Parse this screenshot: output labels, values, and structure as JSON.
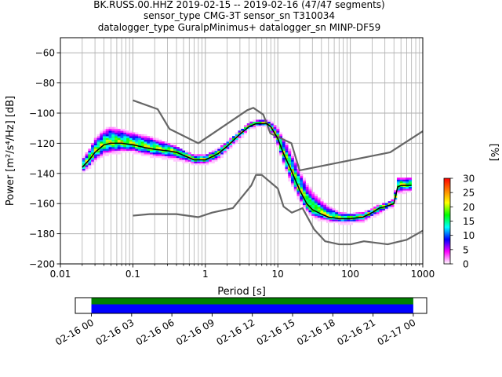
{
  "title_lines": [
    "BK.RUSS.00.HHZ   2019-02-15 -- 2019-02-16  (47/47 segments)",
    "sensor_type CMG-3T sensor_sn T310034",
    "datalogger_type GuralpMinimus+ datalogger_sn MINP-DF59"
  ],
  "chart_data": {
    "type": "heatmap",
    "xlabel": "Period [s]",
    "ylabel": "Power [m²/s⁴/Hz] [dB]",
    "xscale": "log",
    "xlim": [
      0.01,
      1000
    ],
    "ylim": [
      -200,
      -50
    ],
    "x_ticks": [
      {
        "value": 0.01,
        "label": "0.01"
      },
      {
        "value": 0.1,
        "label": "0.1"
      },
      {
        "value": 1,
        "label": "1"
      },
      {
        "value": 10,
        "label": "10"
      },
      {
        "value": 100,
        "label": "100"
      },
      {
        "value": 1000,
        "label": "1000"
      }
    ],
    "y_ticks": [
      {
        "value": -200,
        "label": "−200"
      },
      {
        "value": -180,
        "label": "−180"
      },
      {
        "value": -160,
        "label": "−160"
      },
      {
        "value": -140,
        "label": "−140"
      },
      {
        "value": -120,
        "label": "−120"
      },
      {
        "value": -100,
        "label": "−100"
      },
      {
        "value": -80,
        "label": "−80"
      },
      {
        "value": -60,
        "label": "−60"
      }
    ],
    "grid": true,
    "colorbar": {
      "label": "[%]",
      "range": [
        0,
        30
      ],
      "ticks": [
        {
          "value": 0,
          "label": "0"
        },
        {
          "value": 5,
          "label": "5"
        },
        {
          "value": 10,
          "label": "10"
        },
        {
          "value": 15,
          "label": "15"
        },
        {
          "value": 20,
          "label": "20"
        },
        {
          "value": 25,
          "label": "25"
        },
        {
          "value": 30,
          "label": "30"
        }
      ],
      "colors": [
        "#ffffff",
        "#ff00ff",
        "#0000ff",
        "#00ffff",
        "#00ff00",
        "#ffff00",
        "#ff8000",
        "#ff0000"
      ]
    },
    "nhnm": {
      "x": [
        0.1,
        0.22,
        0.32,
        0.8,
        3.8,
        4.6,
        6.3,
        7.9,
        15.4,
        20,
        354.8,
        1000
      ],
      "y": [
        -91.5,
        -97.4,
        -110.5,
        -120,
        -98,
        -96.5,
        -101,
        -113.5,
        -120,
        -138,
        -126,
        -112
      ]
    },
    "nlnm": {
      "x": [
        0.1,
        0.17,
        0.4,
        0.8,
        1.24,
        2.4,
        4.3,
        5,
        6,
        10,
        12,
        15.6,
        21.9,
        31.6,
        45,
        70,
        101,
        154,
        328,
        600,
        1000
      ],
      "y": [
        -168,
        -167,
        -167,
        -169,
        -166,
        -163,
        -148,
        -141,
        -141,
        -150,
        -162,
        -166,
        -163,
        -177,
        -185,
        -187,
        -187,
        -185,
        -187,
        -184,
        -178
      ]
    },
    "mean_curve": {
      "x": [
        0.02,
        0.025,
        0.03,
        0.04,
        0.05,
        0.07,
        0.1,
        0.15,
        0.2,
        0.3,
        0.4,
        0.5,
        0.7,
        1,
        1.5,
        2,
        3,
        4,
        5,
        6,
        7,
        8,
        10,
        12,
        15,
        20,
        25,
        30,
        40,
        50,
        70,
        100,
        150,
        200,
        250,
        300,
        350,
        400,
        450,
        500,
        600,
        700
      ],
      "y": [
        -136,
        -131,
        -126,
        -121,
        -120,
        -120,
        -121,
        -123,
        -124,
        -125,
        -126,
        -128,
        -131,
        -131,
        -127,
        -122,
        -114,
        -109,
        -107,
        -107,
        -107,
        -109,
        -117,
        -127,
        -137,
        -151,
        -160,
        -164,
        -167,
        -169,
        -170,
        -170,
        -169,
        -166,
        -163,
        -162,
        -161,
        -160,
        -149,
        -148,
        -148,
        -148
      ]
    },
    "spread_upper": {
      "x": [
        0.02,
        0.025,
        0.03,
        0.04,
        0.05,
        0.07,
        0.1,
        0.15,
        0.2,
        0.3,
        0.4,
        0.5,
        0.7,
        1,
        1.5,
        2,
        3,
        4,
        5,
        6,
        7,
        8,
        10,
        12,
        15,
        20,
        25,
        30,
        40,
        50,
        70,
        100,
        150,
        200,
        250,
        300,
        350,
        400,
        450,
        500,
        600,
        700
      ],
      "y": [
        -131,
        -124,
        -117,
        -111,
        -109,
        -111,
        -113,
        -115,
        -117,
        -120,
        -122,
        -125,
        -128,
        -128,
        -124,
        -119,
        -112,
        -107,
        -105,
        -105,
        -105,
        -106,
        -110,
        -117,
        -125,
        -138,
        -147,
        -152,
        -158,
        -162,
        -166,
        -167,
        -166,
        -164,
        -161,
        -160,
        -159,
        -157,
        -143,
        -143,
        -143,
        -143
      ]
    },
    "spread_lower": {
      "x": [
        0.02,
        0.025,
        0.03,
        0.04,
        0.05,
        0.07,
        0.1,
        0.15,
        0.2,
        0.3,
        0.4,
        0.5,
        0.7,
        1,
        1.5,
        2,
        3,
        4,
        5,
        6,
        7,
        8,
        10,
        12,
        15,
        20,
        25,
        30,
        40,
        50,
        70,
        100,
        150,
        200,
        250,
        300,
        350,
        400,
        450,
        500,
        600,
        700
      ],
      "y": [
        -140,
        -136,
        -132,
        -128,
        -127,
        -126,
        -126,
        -128,
        -129,
        -130,
        -131,
        -132,
        -134,
        -134,
        -131,
        -125,
        -117,
        -111,
        -109,
        -109,
        -109,
        -112,
        -122,
        -134,
        -146,
        -158,
        -165,
        -169,
        -171,
        -172,
        -173,
        -173,
        -172,
        -169,
        -167,
        -165,
        -163,
        -162,
        -153,
        -153,
        -152,
        -152
      ]
    },
    "timeline": {
      "labels": [
        "02-16 00",
        "02-16 03",
        "02-16 06",
        "02-16 09",
        "02-16 12",
        "02-16 15",
        "02-16 18",
        "02-16 21",
        "02-17 00"
      ],
      "start_hour": -1.2,
      "end_hour": 25,
      "coverage_start_hour": 0,
      "coverage_end_hour": 24,
      "coverage_colors": [
        "#008000",
        "#0000ff"
      ]
    }
  }
}
